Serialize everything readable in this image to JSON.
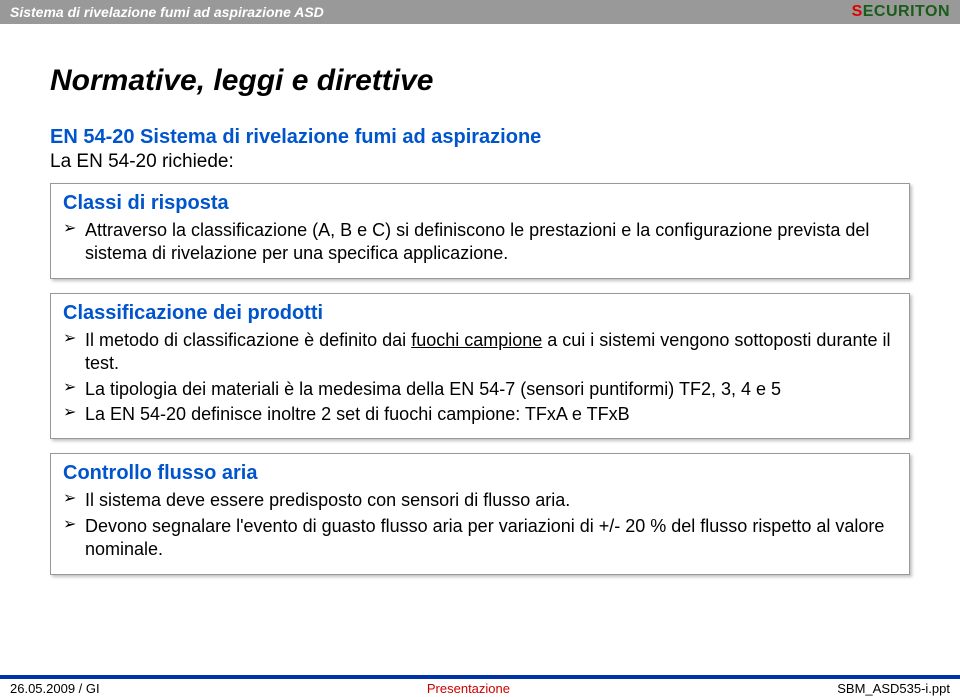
{
  "header": {
    "title": "Sistema di rivelazione fumi ad aspirazione ASD",
    "logo_s": "S",
    "logo_rest": "ECURITON"
  },
  "slide": {
    "title": "Normative, leggi e direttive",
    "subtitle_blue": "EN 54-20 Sistema di rivelazione fumi ad aspirazione",
    "subtitle_black": "La EN 54-20 richiede:"
  },
  "box1": {
    "title": "Classi di risposta",
    "b1": "Attraverso la classificazione (A, B e C) si definiscono le prestazioni e la configurazione prevista del sistema di rivelazione per una specifica applicazione."
  },
  "box2": {
    "title": "Classificazione dei prodotti",
    "b1a": "Il metodo di classificazione è definito dai ",
    "b1u": "fuochi campione",
    "b1b": " a cui i sistemi vengono sottoposti durante il test.",
    "b2": "La tipologia dei materiali è la medesima della EN 54-7 (sensori puntiformi) TF2, 3, 4 e 5",
    "b3": "La EN 54-20 definisce inoltre 2 set di fuochi campione: TFxA e TFxB"
  },
  "box3": {
    "title": "Controllo flusso aria",
    "b1": "Il sistema deve essere predisposto con sensori di flusso aria.",
    "b2": "Devono segnalare l'evento di guasto flusso aria per variazioni di +/- 20 % del flusso rispetto al valore nominale."
  },
  "footer": {
    "left": "26.05.2009 / GI",
    "center": "Presentazione",
    "right": "SBM_ASD535-i.ppt"
  }
}
